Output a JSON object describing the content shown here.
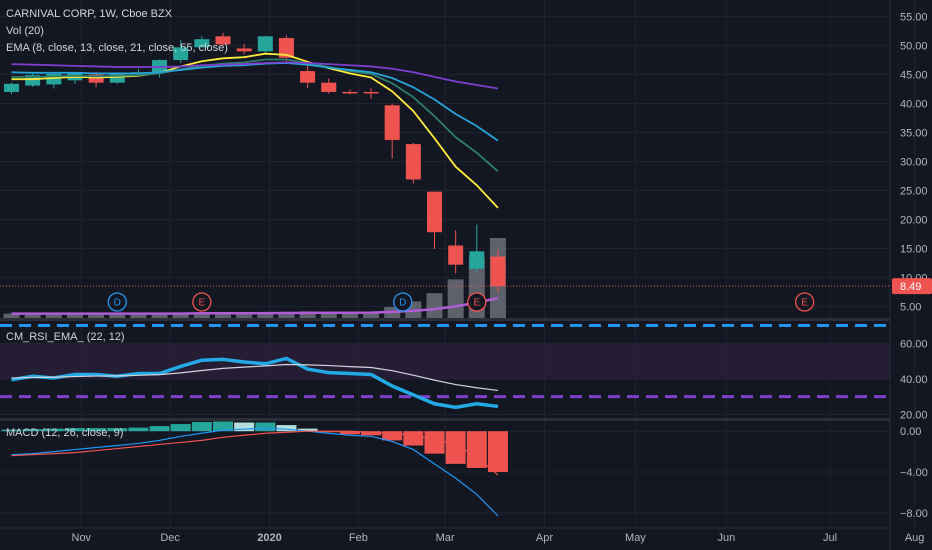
{
  "header": {
    "title": "CARNIVAL CORP, 1W, Cboe BZX",
    "vol_label": "Vol (20)",
    "ema_label": "EMA (8, close, 13, close, 21, close, 55, close)",
    "rsi_label": "CM_RSI_EMA_ (22, 12)",
    "macd_label": "MACD (12, 26, close, 9)"
  },
  "colors": {
    "background": "#131722",
    "grid": "#1f2330",
    "bull": "#26a69a",
    "bear": "#ef5350",
    "ema8": "#ffeb3b",
    "ema13": "#2e7d6a",
    "ema21": "#26a3d9",
    "ema55": "#7e3fcf",
    "volume": "#787b86",
    "volume_ma": "#b05cd6",
    "rsi": "#22a9e6",
    "rsi_ema": "#d1d4dc",
    "rsi_band": "#2a1f3a",
    "dashed_upper": "#2196f3",
    "dashed_lower": "#7e3fcf",
    "macd": "#2196f3",
    "signal": "#ef5350",
    "hist_pos": "#26a69a",
    "hist_pos_weak": "#b2dfdb",
    "hist_neg": "#ef5350",
    "price_label_bg": "#ef5350",
    "dividend": "#2196f3",
    "earnings": "#ef5350"
  },
  "chart_data": [
    {
      "type": "candlestick",
      "title": "CARNIVAL CORP, 1W, Cboe BZX",
      "y_ticks": [
        5,
        10,
        15,
        20,
        25,
        30,
        35,
        40,
        45,
        50,
        55
      ],
      "y_tick_labels": [
        "5.00",
        "10.00",
        "15.00",
        "20.00",
        "25.00",
        "30.00",
        "35.00",
        "40.00",
        "45.00",
        "50.00",
        "55.00"
      ],
      "ylim": [
        3,
        57
      ],
      "x_labels": [
        "Nov",
        "Dec",
        "2020",
        "Feb",
        "Mar",
        "Apr",
        "May",
        "Jun",
        "Jul",
        "Aug"
      ],
      "x_label_weeks": [
        3.3,
        7.5,
        12.2,
        16.4,
        20.5,
        25.2,
        29.5,
        33.8,
        38.7,
        42.7
      ],
      "last_price": 8.49,
      "last_price_label": "8.49",
      "candles": [
        {
          "o": 42.0,
          "h": 43.6,
          "l": 41.6,
          "c": 43.4
        },
        {
          "o": 43.1,
          "h": 45.4,
          "l": 42.9,
          "c": 44.9
        },
        {
          "o": 43.3,
          "h": 45.0,
          "l": 42.6,
          "c": 45.1
        },
        {
          "o": 44.0,
          "h": 45.4,
          "l": 43.4,
          "c": 45.4
        },
        {
          "o": 45.0,
          "h": 45.5,
          "l": 42.8,
          "c": 43.6
        },
        {
          "o": 43.6,
          "h": 45.4,
          "l": 43.4,
          "c": 45.1
        },
        {
          "o": 45.3,
          "h": 46.0,
          "l": 44.7,
          "c": 45.4
        },
        {
          "o": 45.3,
          "h": 47.6,
          "l": 44.5,
          "c": 47.5
        },
        {
          "o": 47.5,
          "h": 51.0,
          "l": 47.0,
          "c": 49.7
        },
        {
          "o": 49.7,
          "h": 51.7,
          "l": 49.6,
          "c": 51.1
        },
        {
          "o": 51.6,
          "h": 52.2,
          "l": 50.0,
          "c": 50.2
        },
        {
          "o": 49.5,
          "h": 50.3,
          "l": 48.5,
          "c": 49.0
        },
        {
          "o": 49.0,
          "h": 51.7,
          "l": 48.6,
          "c": 51.6
        },
        {
          "o": 51.3,
          "h": 51.7,
          "l": 47.3,
          "c": 47.9
        },
        {
          "o": 45.6,
          "h": 46.7,
          "l": 42.7,
          "c": 43.6
        },
        {
          "o": 43.6,
          "h": 44.3,
          "l": 41.7,
          "c": 42.0
        },
        {
          "o": 42.0,
          "h": 42.4,
          "l": 41.6,
          "c": 41.9
        },
        {
          "o": 42.0,
          "h": 42.7,
          "l": 40.8,
          "c": 41.8
        },
        {
          "o": 39.7,
          "h": 40.0,
          "l": 30.5,
          "c": 33.7
        },
        {
          "o": 33.0,
          "h": 33.2,
          "l": 26.2,
          "c": 26.9
        },
        {
          "o": 24.8,
          "h": 24.8,
          "l": 14.9,
          "c": 17.8
        },
        {
          "o": 15.5,
          "h": 18.1,
          "l": 10.7,
          "c": 12.2
        },
        {
          "o": 11.5,
          "h": 19.1,
          "l": 11.0,
          "c": 14.5
        },
        {
          "o": 13.6,
          "h": 14.8,
          "l": 7.5,
          "c": 8.5
        }
      ],
      "ema_series": [
        {
          "name": "EMA 8",
          "values": [
            44.2,
            44.2,
            44.4,
            44.6,
            44.5,
            44.6,
            44.8,
            45.3,
            46.4,
            47.3,
            47.8,
            48.0,
            48.6,
            48.4,
            47.2,
            46.1,
            45.2,
            44.5,
            42.1,
            38.7,
            34.0,
            29.1,
            25.9,
            22.0
          ]
        },
        {
          "name": "EMA 13",
          "values": [
            44.6,
            44.6,
            44.7,
            44.8,
            44.7,
            44.8,
            44.9,
            45.2,
            45.9,
            46.5,
            46.9,
            47.1,
            47.6,
            47.6,
            47.0,
            46.3,
            45.6,
            45.1,
            43.5,
            41.1,
            37.8,
            34.2,
            31.5,
            28.3
          ]
        },
        {
          "name": "EMA 21",
          "values": [
            45.4,
            45.3,
            45.3,
            45.3,
            45.2,
            45.2,
            45.2,
            45.4,
            45.8,
            46.2,
            46.5,
            46.6,
            46.9,
            47.0,
            46.7,
            46.2,
            45.8,
            45.4,
            44.4,
            42.8,
            40.7,
            38.2,
            36.1,
            33.6
          ]
        },
        {
          "name": "EMA 55",
          "values": [
            46.8,
            46.7,
            46.6,
            46.5,
            46.4,
            46.3,
            46.3,
            46.3,
            46.4,
            46.6,
            46.7,
            46.8,
            47.0,
            47.1,
            47.0,
            46.8,
            46.6,
            46.4,
            46.0,
            45.4,
            44.6,
            43.8,
            43.2,
            42.6
          ]
        }
      ],
      "volume": [
        0.8,
        0.9,
        0.8,
        0.7,
        0.8,
        0.9,
        0.8,
        0.9,
        1.0,
        0.9,
        1.0,
        0.9,
        1.0,
        1.1,
        1.2,
        1.1,
        1.0,
        1.1,
        2.0,
        3.0,
        4.5,
        7.0,
        11.0,
        14.5
      ],
      "volume_ma": [
        0.8,
        0.8,
        0.8,
        0.8,
        0.8,
        0.8,
        0.8,
        0.8,
        0.8,
        0.85,
        0.85,
        0.85,
        0.88,
        0.9,
        0.92,
        0.95,
        0.95,
        0.98,
        1.1,
        1.3,
        1.6,
        2.1,
        2.8,
        3.6
      ],
      "events": [
        {
          "type": "D",
          "week": 5.0
        },
        {
          "type": "E",
          "week": 9.0
        },
        {
          "type": "D",
          "week": 18.5
        },
        {
          "type": "E",
          "week": 22.0
        },
        {
          "type": "E",
          "week": 37.5
        }
      ]
    },
    {
      "type": "line",
      "title": "CM_RSI_EMA_ (22, 12)",
      "y_ticks": [
        20,
        40,
        60
      ],
      "y_tick_labels": [
        "20.00",
        "40.00",
        "60.00"
      ],
      "ylim": [
        18,
        72
      ],
      "band": [
        40,
        60
      ],
      "dashed_levels": [
        70,
        30
      ],
      "series": [
        {
          "name": "RSI",
          "values": [
            39.5,
            41.5,
            40.5,
            42.5,
            42.5,
            41.5,
            43,
            43,
            47,
            50.5,
            51,
            49.5,
            48.5,
            51.5,
            45.5,
            43.5,
            43,
            42.5,
            36,
            31,
            26,
            24,
            26,
            24.5
          ]
        },
        {
          "name": "RSI EMA",
          "values": [
            40.5,
            40.8,
            41.0,
            41.3,
            41.6,
            41.7,
            42.0,
            42.4,
            43.4,
            44.7,
            45.9,
            46.6,
            47.3,
            48.1,
            47.9,
            47.5,
            46.9,
            46.4,
            44.6,
            42.1,
            39.3,
            36.8,
            35.0,
            33.5
          ]
        }
      ]
    },
    {
      "type": "bar",
      "title": "MACD (12, 26, close, 9)",
      "y_ticks": [
        0,
        -4,
        -8
      ],
      "y_tick_labels": [
        "0.00",
        "−4.00",
        "−8.00"
      ],
      "ylim": [
        -8.9,
        1.0
      ],
      "histogram": [
        0.15,
        0.2,
        0.25,
        0.3,
        0.3,
        0.3,
        0.35,
        0.5,
        0.7,
        0.9,
        0.95,
        0.85,
        0.85,
        0.6,
        0.25,
        -0.1,
        -0.3,
        -0.4,
        -0.9,
        -1.4,
        -2.2,
        -3.2,
        -3.6,
        -4.0
      ],
      "series": [
        {
          "name": "MACD",
          "values": [
            -2.3,
            -2.2,
            -2.0,
            -1.8,
            -1.6,
            -1.4,
            -1.2,
            -0.9,
            -0.5,
            -0.2,
            0.1,
            0.2,
            0.3,
            0.2,
            0.0,
            -0.2,
            -0.4,
            -0.5,
            -1.0,
            -1.8,
            -3.2,
            -4.6,
            -6.2,
            -8.3
          ]
        },
        {
          "name": "Signal",
          "values": [
            -2.4,
            -2.3,
            -2.2,
            -2.1,
            -1.9,
            -1.7,
            -1.5,
            -1.3,
            -1.1,
            -0.9,
            -0.6,
            -0.4,
            -0.2,
            -0.1,
            0.0,
            0.0,
            0.0,
            -0.1,
            -0.2,
            -0.4,
            -0.8,
            -1.3,
            -2.5,
            -4.3
          ]
        }
      ]
    }
  ]
}
